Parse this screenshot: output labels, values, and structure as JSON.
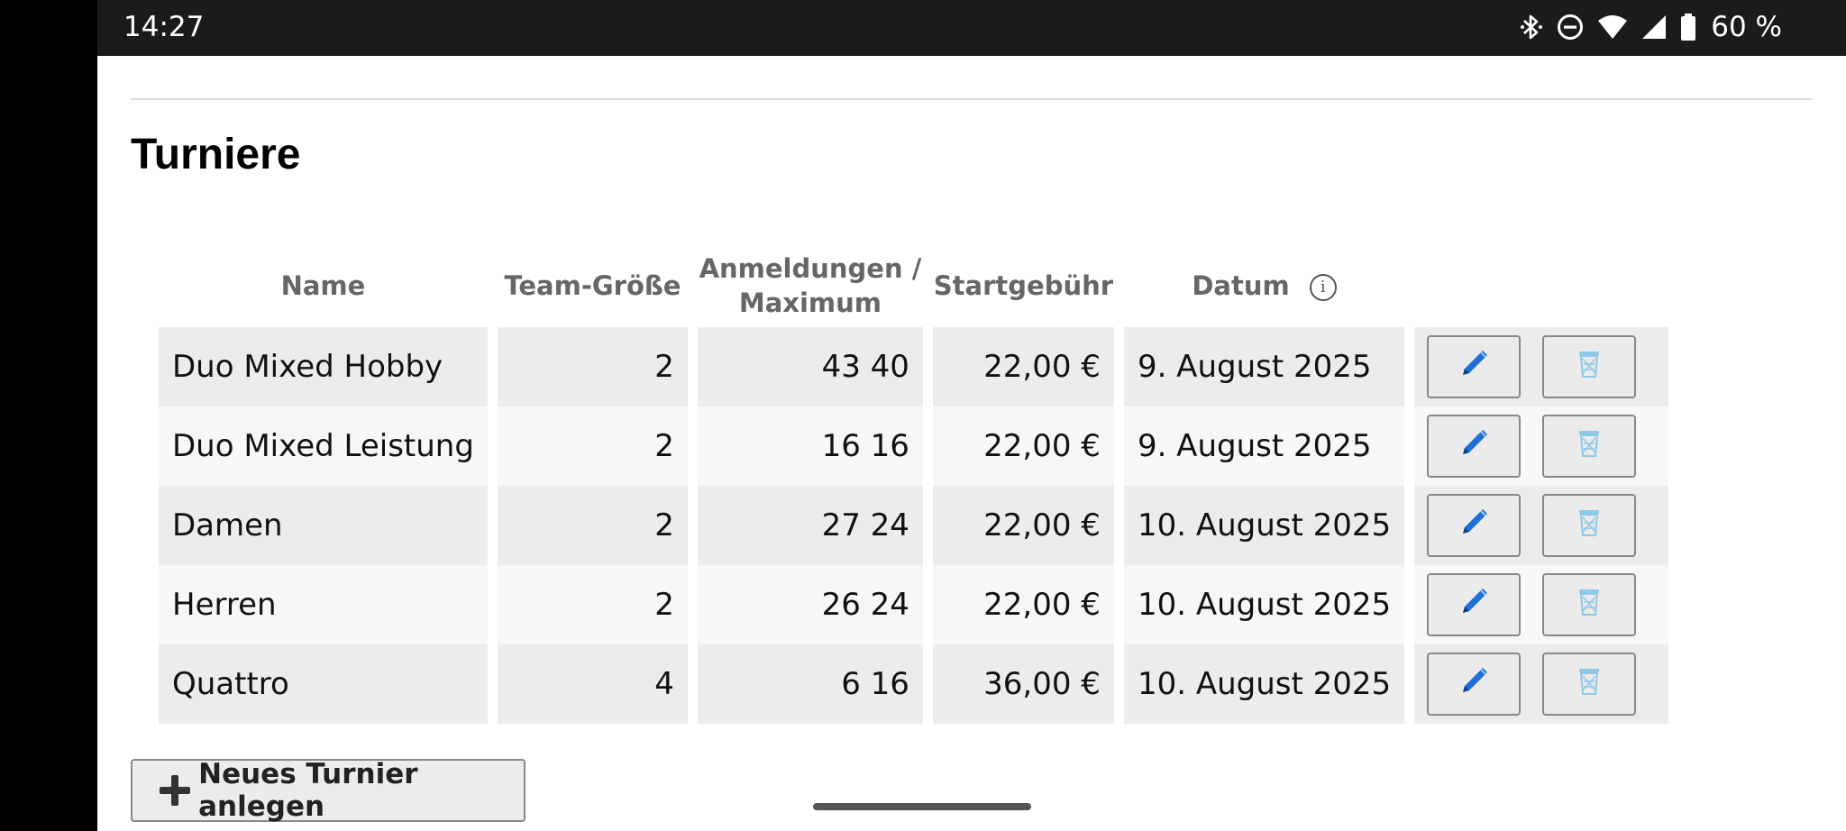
{
  "status_bar": {
    "time": "14:27",
    "icons": [
      "bluetooth-icon",
      "do-not-disturb-icon",
      "wifi-icon",
      "signal-icon",
      "battery-icon"
    ],
    "battery_percent": "60 %"
  },
  "page": {
    "title": "Turniere",
    "table": {
      "headers": {
        "name": "Name",
        "team_size": "Team-Größe",
        "registrations_line1": "Anmeldungen /",
        "registrations_line2": "Maximum",
        "fee": "Startgebühr",
        "date": "Datum"
      },
      "rows": [
        {
          "name": "Duo Mixed Hobby",
          "team_size": "2",
          "registrations": "43 40",
          "fee": "22,00 €",
          "date": "9. August 2025"
        },
        {
          "name": "Duo Mixed Leistung",
          "team_size": "2",
          "registrations": "16 16",
          "fee": "22,00 €",
          "date": "9. August 2025"
        },
        {
          "name": "Damen",
          "team_size": "2",
          "registrations": "27 24",
          "fee": "22,00 €",
          "date": "10. August 2025"
        },
        {
          "name": "Herren",
          "team_size": "2",
          "registrations": "26 24",
          "fee": "22,00 €",
          "date": "10. August 2025"
        },
        {
          "name": "Quattro",
          "team_size": "4",
          "registrations": "6 16",
          "fee": "36,00 €",
          "date": "10. August 2025"
        }
      ],
      "row_action_icons": [
        "pencil-icon",
        "trash-icon"
      ]
    },
    "new_button_label": "Neues Turnier anlegen"
  },
  "colors": {
    "header_text": "#666666",
    "row_odd": "#ececec",
    "row_even": "#f7f7f7",
    "pencil_blue": "#1f6fd6",
    "trash_blue": "#8fc9e8"
  }
}
